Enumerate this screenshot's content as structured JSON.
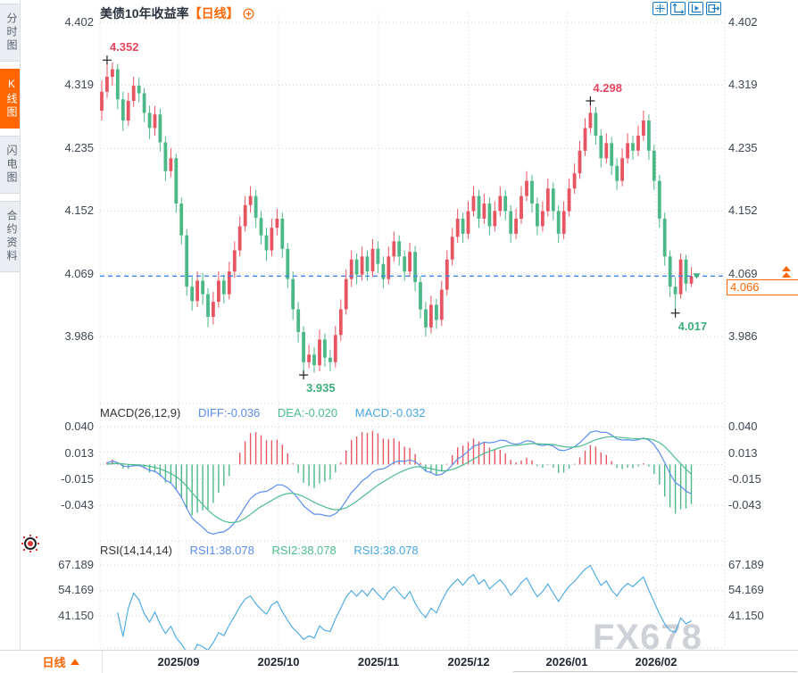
{
  "sidebar": {
    "items": [
      {
        "label": "分时图",
        "active": false
      },
      {
        "label": "K线图",
        "active": true
      },
      {
        "label": "闪电图",
        "active": false
      },
      {
        "label": "合约资料",
        "active": false
      }
    ]
  },
  "header": {
    "title": "美债10年收益率",
    "period_tag": "【日线】"
  },
  "toolbar": {
    "icons": [
      "move-crosshair",
      "zoom-extents",
      "playback",
      "exit-right"
    ]
  },
  "axis": {
    "main": [
      "4.402",
      "4.319",
      "4.235",
      "4.152",
      "4.069",
      "3.986"
    ],
    "macd": [
      "0.040",
      "0.013",
      "-0.015",
      "-0.043"
    ],
    "rsi": [
      "67.189",
      "54.169",
      "41.150"
    ]
  },
  "price_marker": {
    "axis_label": "4.069",
    "tag": "4.066"
  },
  "macd_panel": {
    "label": "MACD(26,12,9)",
    "diff_label": "DIFF:-0.036",
    "dea_label": "DEA:-0.020",
    "macd_label": "MACD:-0.032"
  },
  "rsi_panel": {
    "label": "RSI(14,14,14)",
    "rsi1_label": "RSI1:38.078",
    "rsi2_label": "RSI2:38.078",
    "rsi3_label": "RSI3:38.078"
  },
  "bottom_bar": {
    "period": "日线",
    "dates": [
      "2025/09",
      "2025/10",
      "2025/11",
      "2025/12",
      "2026/01",
      "2026/02"
    ]
  },
  "watermark": "FX678",
  "colors": {
    "up": "#e85562",
    "down": "#4db887",
    "accent": "#ff6600",
    "diff_line": "#5a8dee",
    "dea_line": "#4dbd8d",
    "rsi_line": "#45a7e3",
    "price_line": "#3f86e8",
    "grid": "#ccd2da",
    "annotation_high": "#e8455f",
    "annotation_low": "#3fae7a",
    "axis_text": "#3d4754"
  },
  "chart_data": {
    "type": "candlestick",
    "title": "美债10年收益率",
    "period": "日线",
    "x_labels": [
      "2025/09",
      "2025/10",
      "2025/11",
      "2025/12",
      "2026/01",
      "2026/02"
    ],
    "y_axis_main": [
      4.402,
      4.319,
      4.235,
      4.152,
      4.069,
      3.986
    ],
    "y_axis_macd": [
      0.04,
      0.013,
      -0.015,
      -0.043
    ],
    "y_axis_rsi": [
      67.189,
      54.169,
      41.15
    ],
    "last_price": 4.066,
    "macd_display": {
      "diff": -0.036,
      "dea": -0.02,
      "macd": -0.032
    },
    "rsi_display": {
      "rsi1": 38.078,
      "rsi2": 38.078,
      "rsi3": 38.078
    },
    "annotations": [
      {
        "type": "high",
        "index": 1,
        "value": 4.352
      },
      {
        "type": "low",
        "index": 38,
        "value": 3.935
      },
      {
        "type": "high",
        "index": 92,
        "value": 4.298
      },
      {
        "type": "low",
        "index": 108,
        "value": 4.017
      }
    ],
    "candles": [
      [
        4.285,
        4.325,
        4.272,
        4.31
      ],
      [
        4.31,
        4.352,
        4.302,
        4.33
      ],
      [
        4.33,
        4.349,
        4.318,
        4.34
      ],
      [
        4.34,
        4.347,
        4.287,
        4.3
      ],
      [
        4.3,
        4.31,
        4.258,
        4.272
      ],
      [
        4.272,
        4.309,
        4.265,
        4.298
      ],
      [
        4.298,
        4.33,
        4.29,
        4.318
      ],
      [
        4.318,
        4.329,
        4.296,
        4.308
      ],
      [
        4.308,
        4.315,
        4.27,
        4.282
      ],
      [
        4.282,
        4.292,
        4.247,
        4.262
      ],
      [
        4.262,
        4.291,
        4.252,
        4.28
      ],
      [
        4.28,
        4.288,
        4.231,
        4.243
      ],
      [
        4.243,
        4.251,
        4.192,
        4.205
      ],
      [
        4.205,
        4.235,
        4.197,
        4.222
      ],
      [
        4.222,
        4.228,
        4.15,
        4.162
      ],
      [
        4.162,
        4.17,
        4.108,
        4.12
      ],
      [
        4.12,
        4.128,
        4.04,
        4.052
      ],
      [
        4.052,
        4.065,
        4.02,
        4.033
      ],
      [
        4.033,
        4.072,
        4.025,
        4.06
      ],
      [
        4.06,
        4.07,
        4.028,
        4.042
      ],
      [
        4.042,
        4.05,
        3.998,
        4.012
      ],
      [
        4.012,
        4.045,
        4.002,
        4.032
      ],
      [
        4.032,
        4.072,
        4.024,
        4.06
      ],
      [
        4.06,
        4.068,
        4.03,
        4.042
      ],
      [
        4.042,
        4.085,
        4.035,
        4.072
      ],
      [
        4.072,
        4.112,
        4.064,
        4.1
      ],
      [
        4.1,
        4.145,
        4.092,
        4.132
      ],
      [
        4.132,
        4.172,
        4.125,
        4.16
      ],
      [
        4.16,
        4.185,
        4.15,
        4.172
      ],
      [
        4.172,
        4.18,
        4.13,
        4.143
      ],
      [
        4.143,
        4.152,
        4.108,
        4.12
      ],
      [
        4.12,
        4.13,
        4.086,
        4.1
      ],
      [
        4.1,
        4.142,
        4.092,
        4.13
      ],
      [
        4.13,
        4.155,
        4.12,
        4.142
      ],
      [
        4.142,
        4.15,
        4.09,
        4.102
      ],
      [
        4.102,
        4.11,
        4.05,
        4.062
      ],
      [
        4.062,
        4.072,
        4.008,
        4.022
      ],
      [
        4.022,
        4.032,
        3.978,
        3.992
      ],
      [
        3.992,
        4.0,
        3.935,
        3.952
      ],
      [
        3.952,
        3.975,
        3.944,
        3.962
      ],
      [
        3.962,
        3.972,
        3.938,
        3.948
      ],
      [
        3.948,
        3.995,
        3.94,
        3.982
      ],
      [
        3.982,
        3.99,
        3.946,
        3.958
      ],
      [
        3.958,
        3.968,
        3.94,
        3.952
      ],
      [
        3.952,
        4.0,
        3.945,
        3.988
      ],
      [
        3.988,
        4.035,
        3.98,
        4.022
      ],
      [
        4.022,
        4.075,
        4.015,
        4.062
      ],
      [
        4.062,
        4.1,
        4.052,
        4.088
      ],
      [
        4.088,
        4.096,
        4.055,
        4.068
      ],
      [
        4.068,
        4.105,
        4.06,
        4.092
      ],
      [
        4.092,
        4.1,
        4.06,
        4.072
      ],
      [
        4.072,
        4.115,
        4.065,
        4.102
      ],
      [
        4.102,
        4.112,
        4.07,
        4.082
      ],
      [
        4.082,
        4.092,
        4.05,
        4.062
      ],
      [
        4.062,
        4.105,
        4.055,
        4.092
      ],
      [
        4.092,
        4.125,
        4.085,
        4.112
      ],
      [
        4.112,
        4.12,
        4.08,
        4.092
      ],
      [
        4.092,
        4.1,
        4.06,
        4.072
      ],
      [
        4.072,
        4.11,
        4.065,
        4.098
      ],
      [
        4.098,
        4.106,
        4.046,
        4.058
      ],
      [
        4.058,
        4.066,
        4.01,
        4.022
      ],
      [
        4.022,
        4.032,
        3.986,
        3.998
      ],
      [
        3.998,
        4.04,
        3.99,
        4.028
      ],
      [
        4.028,
        4.036,
        3.996,
        4.008
      ],
      [
        4.008,
        4.06,
        4.0,
        4.048
      ],
      [
        4.048,
        4.1,
        4.04,
        4.088
      ],
      [
        4.088,
        4.13,
        4.08,
        4.118
      ],
      [
        4.118,
        4.155,
        4.11,
        4.142
      ],
      [
        4.142,
        4.15,
        4.11,
        4.122
      ],
      [
        4.122,
        4.165,
        4.115,
        4.152
      ],
      [
        4.152,
        4.185,
        4.145,
        4.172
      ],
      [
        4.172,
        4.18,
        4.13,
        4.142
      ],
      [
        4.142,
        4.175,
        4.135,
        4.162
      ],
      [
        4.162,
        4.17,
        4.12,
        4.132
      ],
      [
        4.132,
        4.165,
        4.125,
        4.152
      ],
      [
        4.152,
        4.185,
        4.145,
        4.172
      ],
      [
        4.172,
        4.18,
        4.14,
        4.152
      ],
      [
        4.152,
        4.16,
        4.11,
        4.122
      ],
      [
        4.122,
        4.155,
        4.115,
        4.142
      ],
      [
        4.142,
        4.185,
        4.135,
        4.172
      ],
      [
        4.172,
        4.205,
        4.165,
        4.192
      ],
      [
        4.192,
        4.2,
        4.15,
        4.162
      ],
      [
        4.162,
        4.17,
        4.12,
        4.132
      ],
      [
        4.132,
        4.165,
        4.125,
        4.152
      ],
      [
        4.152,
        4.195,
        4.145,
        4.182
      ],
      [
        4.182,
        4.19,
        4.14,
        4.152
      ],
      [
        4.152,
        4.16,
        4.11,
        4.122
      ],
      [
        4.122,
        4.165,
        4.115,
        4.152
      ],
      [
        4.152,
        4.195,
        4.145,
        4.182
      ],
      [
        4.182,
        4.215,
        4.175,
        4.202
      ],
      [
        4.202,
        4.245,
        4.195,
        4.232
      ],
      [
        4.232,
        4.275,
        4.225,
        4.262
      ],
      [
        4.262,
        4.298,
        4.255,
        4.282
      ],
      [
        4.282,
        4.29,
        4.24,
        4.252
      ],
      [
        4.252,
        4.26,
        4.21,
        4.222
      ],
      [
        4.222,
        4.255,
        4.215,
        4.242
      ],
      [
        4.242,
        4.25,
        4.2,
        4.212
      ],
      [
        4.212,
        4.222,
        4.18,
        4.192
      ],
      [
        4.192,
        4.235,
        4.185,
        4.222
      ],
      [
        4.222,
        4.255,
        4.215,
        4.242
      ],
      [
        4.242,
        4.252,
        4.22,
        4.232
      ],
      [
        4.232,
        4.265,
        4.225,
        4.252
      ],
      [
        4.252,
        4.285,
        4.245,
        4.272
      ],
      [
        4.272,
        4.28,
        4.22,
        4.232
      ],
      [
        4.232,
        4.24,
        4.18,
        4.192
      ],
      [
        4.192,
        4.2,
        4.13,
        4.142
      ],
      [
        4.142,
        4.15,
        4.08,
        4.092
      ],
      [
        4.092,
        4.1,
        4.038,
        4.052
      ],
      [
        4.052,
        4.065,
        4.017,
        4.042
      ],
      [
        4.042,
        4.096,
        4.036,
        4.088
      ],
      [
        4.088,
        4.094,
        4.046,
        4.056
      ],
      [
        4.056,
        4.078,
        4.052,
        4.066
      ]
    ]
  }
}
